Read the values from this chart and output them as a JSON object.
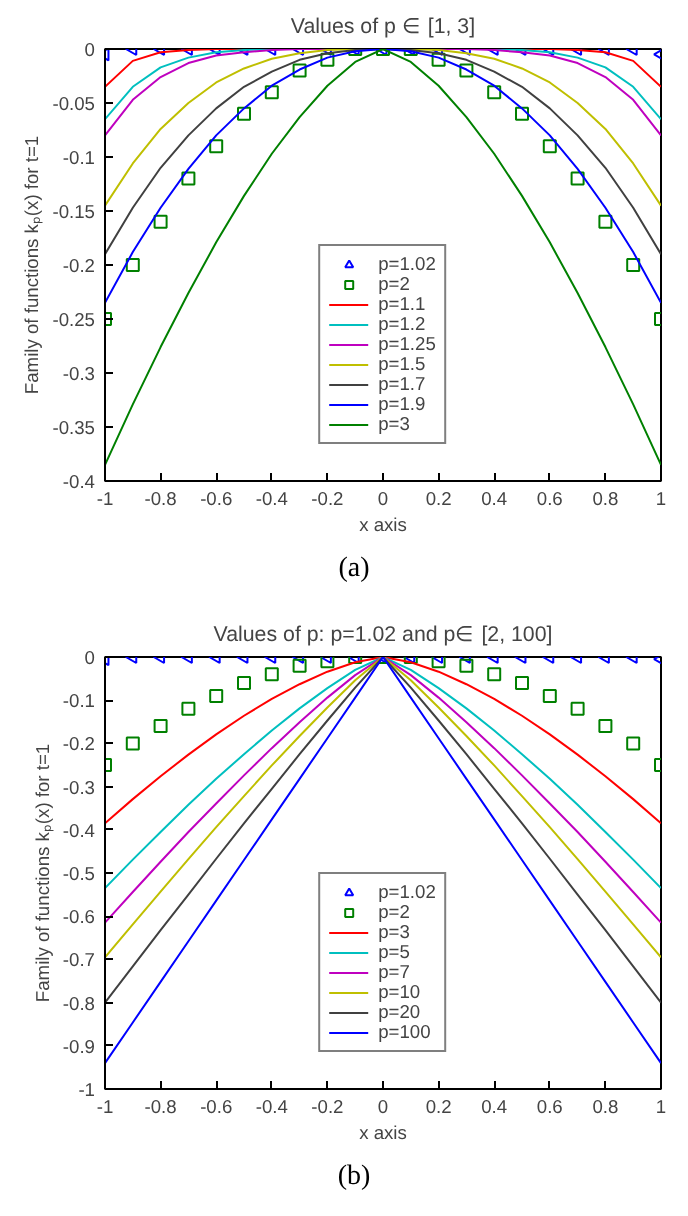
{
  "chart_data": [
    {
      "type": "line",
      "title": "Values of p ∈ [1, 3]",
      "xlabel": "x axis",
      "ylabel": "Family of functions kₚ(x) for t=1",
      "annotations": [
        "(a)"
      ],
      "x": [
        -1,
        -0.9,
        -0.8,
        -0.7,
        -0.6,
        -0.5,
        -0.4,
        -0.3,
        -0.2,
        -0.1,
        0,
        0.1,
        0.2,
        0.3,
        0.4,
        0.5,
        0.6,
        0.7,
        0.8,
        0.9,
        1
      ],
      "xlim": [
        -1,
        1
      ],
      "xticks": [
        -1,
        -0.8,
        -0.6,
        -0.4,
        -0.2,
        0,
        0.2,
        0.4,
        0.6,
        0.8,
        1
      ],
      "ylim": [
        -0.4,
        0
      ],
      "yticks": [
        -0.4,
        -0.35,
        -0.3,
        -0.25,
        -0.2,
        -0.15,
        -0.1,
        -0.05,
        0
      ],
      "grid": false,
      "legend": "bottom",
      "series": [
        {
          "name": "p=1.02",
          "color": "#0000ff",
          "type": "scatter",
          "marker": "triangle",
          "values": [
            -0.005,
            0,
            0,
            0,
            0,
            0,
            0,
            0,
            0,
            0,
            0,
            0,
            0,
            0,
            0,
            0,
            0,
            0,
            0,
            0,
            -0.005
          ]
        },
        {
          "name": "p=2",
          "color": "#008000",
          "type": "scatter",
          "marker": "square",
          "values": [
            -0.25,
            -0.2,
            -0.16,
            -0.12,
            -0.09,
            -0.06,
            -0.04,
            -0.02,
            -0.01,
            0,
            0,
            0,
            -0.01,
            -0.02,
            -0.04,
            -0.06,
            -0.09,
            -0.12,
            -0.16,
            -0.2,
            -0.25
          ]
        },
        {
          "name": "p=1.1",
          "color": "#ff0000",
          "values": [
            -0.035,
            -0.011,
            -0.003,
            -0.001,
            0,
            0,
            0,
            0,
            0,
            0,
            0,
            0,
            0,
            0,
            0,
            0,
            0,
            -0.001,
            -0.003,
            -0.011,
            -0.035
          ]
        },
        {
          "name": "p=1.2",
          "color": "#00bfbf",
          "values": [
            -0.065,
            -0.035,
            -0.017,
            -0.008,
            -0.003,
            -0.001,
            0,
            0,
            0,
            0,
            0,
            0,
            0,
            0,
            0,
            -0.001,
            -0.003,
            -0.008,
            -0.017,
            -0.035,
            -0.065
          ]
        },
        {
          "name": "p=1.25",
          "color": "#bf00bf",
          "values": [
            -0.08,
            -0.047,
            -0.026,
            -0.013,
            -0.006,
            -0.003,
            -0.001,
            0,
            0,
            0,
            0,
            0,
            0,
            0,
            -0.001,
            -0.003,
            -0.006,
            -0.013,
            -0.026,
            -0.047,
            -0.08
          ]
        },
        {
          "name": "p=1.5",
          "color": "#bfbf00",
          "values": [
            -0.145,
            -0.106,
            -0.074,
            -0.05,
            -0.031,
            -0.018,
            -0.009,
            -0.004,
            -0.001,
            0,
            0,
            0,
            -0.001,
            -0.004,
            -0.009,
            -0.018,
            -0.031,
            -0.05,
            -0.074,
            -0.106,
            -0.145
          ]
        },
        {
          "name": "p=1.7",
          "color": "#404040",
          "values": [
            -0.19,
            -0.147,
            -0.11,
            -0.08,
            -0.055,
            -0.035,
            -0.021,
            -0.01,
            -0.004,
            -0.001,
            0,
            -0.001,
            -0.004,
            -0.01,
            -0.021,
            -0.035,
            -0.055,
            -0.08,
            -0.11,
            -0.147,
            -0.19
          ]
        },
        {
          "name": "p=1.9",
          "color": "#0000ff",
          "values": [
            -0.235,
            -0.188,
            -0.147,
            -0.111,
            -0.08,
            -0.055,
            -0.034,
            -0.019,
            -0.008,
            -0.002,
            0,
            -0.002,
            -0.008,
            -0.019,
            -0.034,
            -0.055,
            -0.08,
            -0.111,
            -0.147,
            -0.188,
            -0.235
          ]
        },
        {
          "name": "p=3",
          "color": "#008000",
          "values": [
            -0.385,
            -0.329,
            -0.276,
            -0.226,
            -0.179,
            -0.136,
            -0.097,
            -0.063,
            -0.034,
            -0.012,
            0,
            -0.012,
            -0.034,
            -0.063,
            -0.097,
            -0.136,
            -0.179,
            -0.226,
            -0.276,
            -0.329,
            -0.385
          ]
        }
      ]
    },
    {
      "type": "line",
      "title": "Values of p: p=1.02 and p∈ [2, 100]",
      "xlabel": "x axis",
      "ylabel": "Family of functions kₚ(x) for t=1",
      "annotations": [
        "(b)"
      ],
      "x": [
        -1,
        -0.9,
        -0.8,
        -0.7,
        -0.6,
        -0.5,
        -0.4,
        -0.3,
        -0.2,
        -0.1,
        0,
        0.1,
        0.2,
        0.3,
        0.4,
        0.5,
        0.6,
        0.7,
        0.8,
        0.9,
        1
      ],
      "xlim": [
        -1,
        1
      ],
      "xticks": [
        -1,
        -0.8,
        -0.6,
        -0.4,
        -0.2,
        0,
        0.2,
        0.4,
        0.6,
        0.8,
        1
      ],
      "ylim": [
        -1,
        0
      ],
      "yticks": [
        -1,
        -0.9,
        -0.8,
        -0.7,
        -0.6,
        -0.5,
        -0.4,
        -0.3,
        -0.2,
        -0.1,
        0
      ],
      "grid": false,
      "legend": "bottom",
      "series": [
        {
          "name": "p=1.02",
          "color": "#0000ff",
          "type": "scatter",
          "marker": "triangle",
          "values": [
            -0.005,
            0,
            0,
            0,
            0,
            0,
            0,
            0,
            0,
            0,
            0,
            0,
            0,
            0,
            0,
            0,
            0,
            0,
            0,
            0,
            -0.005
          ]
        },
        {
          "name": "p=2",
          "color": "#008000",
          "type": "scatter",
          "marker": "square",
          "values": [
            -0.25,
            -0.2,
            -0.16,
            -0.12,
            -0.09,
            -0.06,
            -0.04,
            -0.02,
            -0.01,
            0,
            0,
            0,
            -0.01,
            -0.02,
            -0.04,
            -0.06,
            -0.09,
            -0.12,
            -0.16,
            -0.2,
            -0.25
          ]
        },
        {
          "name": "p=3",
          "color": "#ff0000",
          "values": [
            -0.385,
            -0.329,
            -0.276,
            -0.226,
            -0.179,
            -0.136,
            -0.097,
            -0.063,
            -0.034,
            -0.012,
            0,
            -0.012,
            -0.034,
            -0.063,
            -0.097,
            -0.136,
            -0.179,
            -0.226,
            -0.276,
            -0.329,
            -0.385
          ]
        },
        {
          "name": "p=5",
          "color": "#00bfbf",
          "values": [
            -0.535,
            -0.469,
            -0.405,
            -0.342,
            -0.282,
            -0.225,
            -0.17,
            -0.119,
            -0.072,
            -0.03,
            0,
            -0.03,
            -0.072,
            -0.119,
            -0.17,
            -0.225,
            -0.282,
            -0.342,
            -0.405,
            -0.469,
            -0.535
          ]
        },
        {
          "name": "p=7",
          "color": "#bf00bf",
          "values": [
            -0.615,
            -0.544,
            -0.474,
            -0.405,
            -0.339,
            -0.274,
            -0.211,
            -0.151,
            -0.094,
            -0.042,
            0,
            -0.042,
            -0.094,
            -0.151,
            -0.211,
            -0.274,
            -0.339,
            -0.405,
            -0.474,
            -0.544,
            -0.615
          ]
        },
        {
          "name": "p=10",
          "color": "#bfbf00",
          "values": [
            -0.695,
            -0.619,
            -0.543,
            -0.468,
            -0.394,
            -0.322,
            -0.251,
            -0.183,
            -0.117,
            -0.054,
            0,
            -0.054,
            -0.117,
            -0.183,
            -0.251,
            -0.322,
            -0.394,
            -0.468,
            -0.543,
            -0.619,
            -0.695
          ]
        },
        {
          "name": "p=20",
          "color": "#404040",
          "values": [
            -0.8,
            -0.716,
            -0.632,
            -0.55,
            -0.467,
            -0.385,
            -0.305,
            -0.225,
            -0.147,
            -0.071,
            0,
            -0.071,
            -0.147,
            -0.225,
            -0.305,
            -0.385,
            -0.467,
            -0.55,
            -0.632,
            -0.716,
            -0.8
          ]
        },
        {
          "name": "p=100",
          "color": "#0000ff",
          "values": [
            -0.94,
            -0.846,
            -0.752,
            -0.658,
            -0.564,
            -0.47,
            -0.376,
            -0.282,
            -0.188,
            -0.094,
            0,
            -0.094,
            -0.188,
            -0.282,
            -0.376,
            -0.47,
            -0.564,
            -0.658,
            -0.752,
            -0.846,
            -0.94
          ]
        }
      ]
    }
  ]
}
